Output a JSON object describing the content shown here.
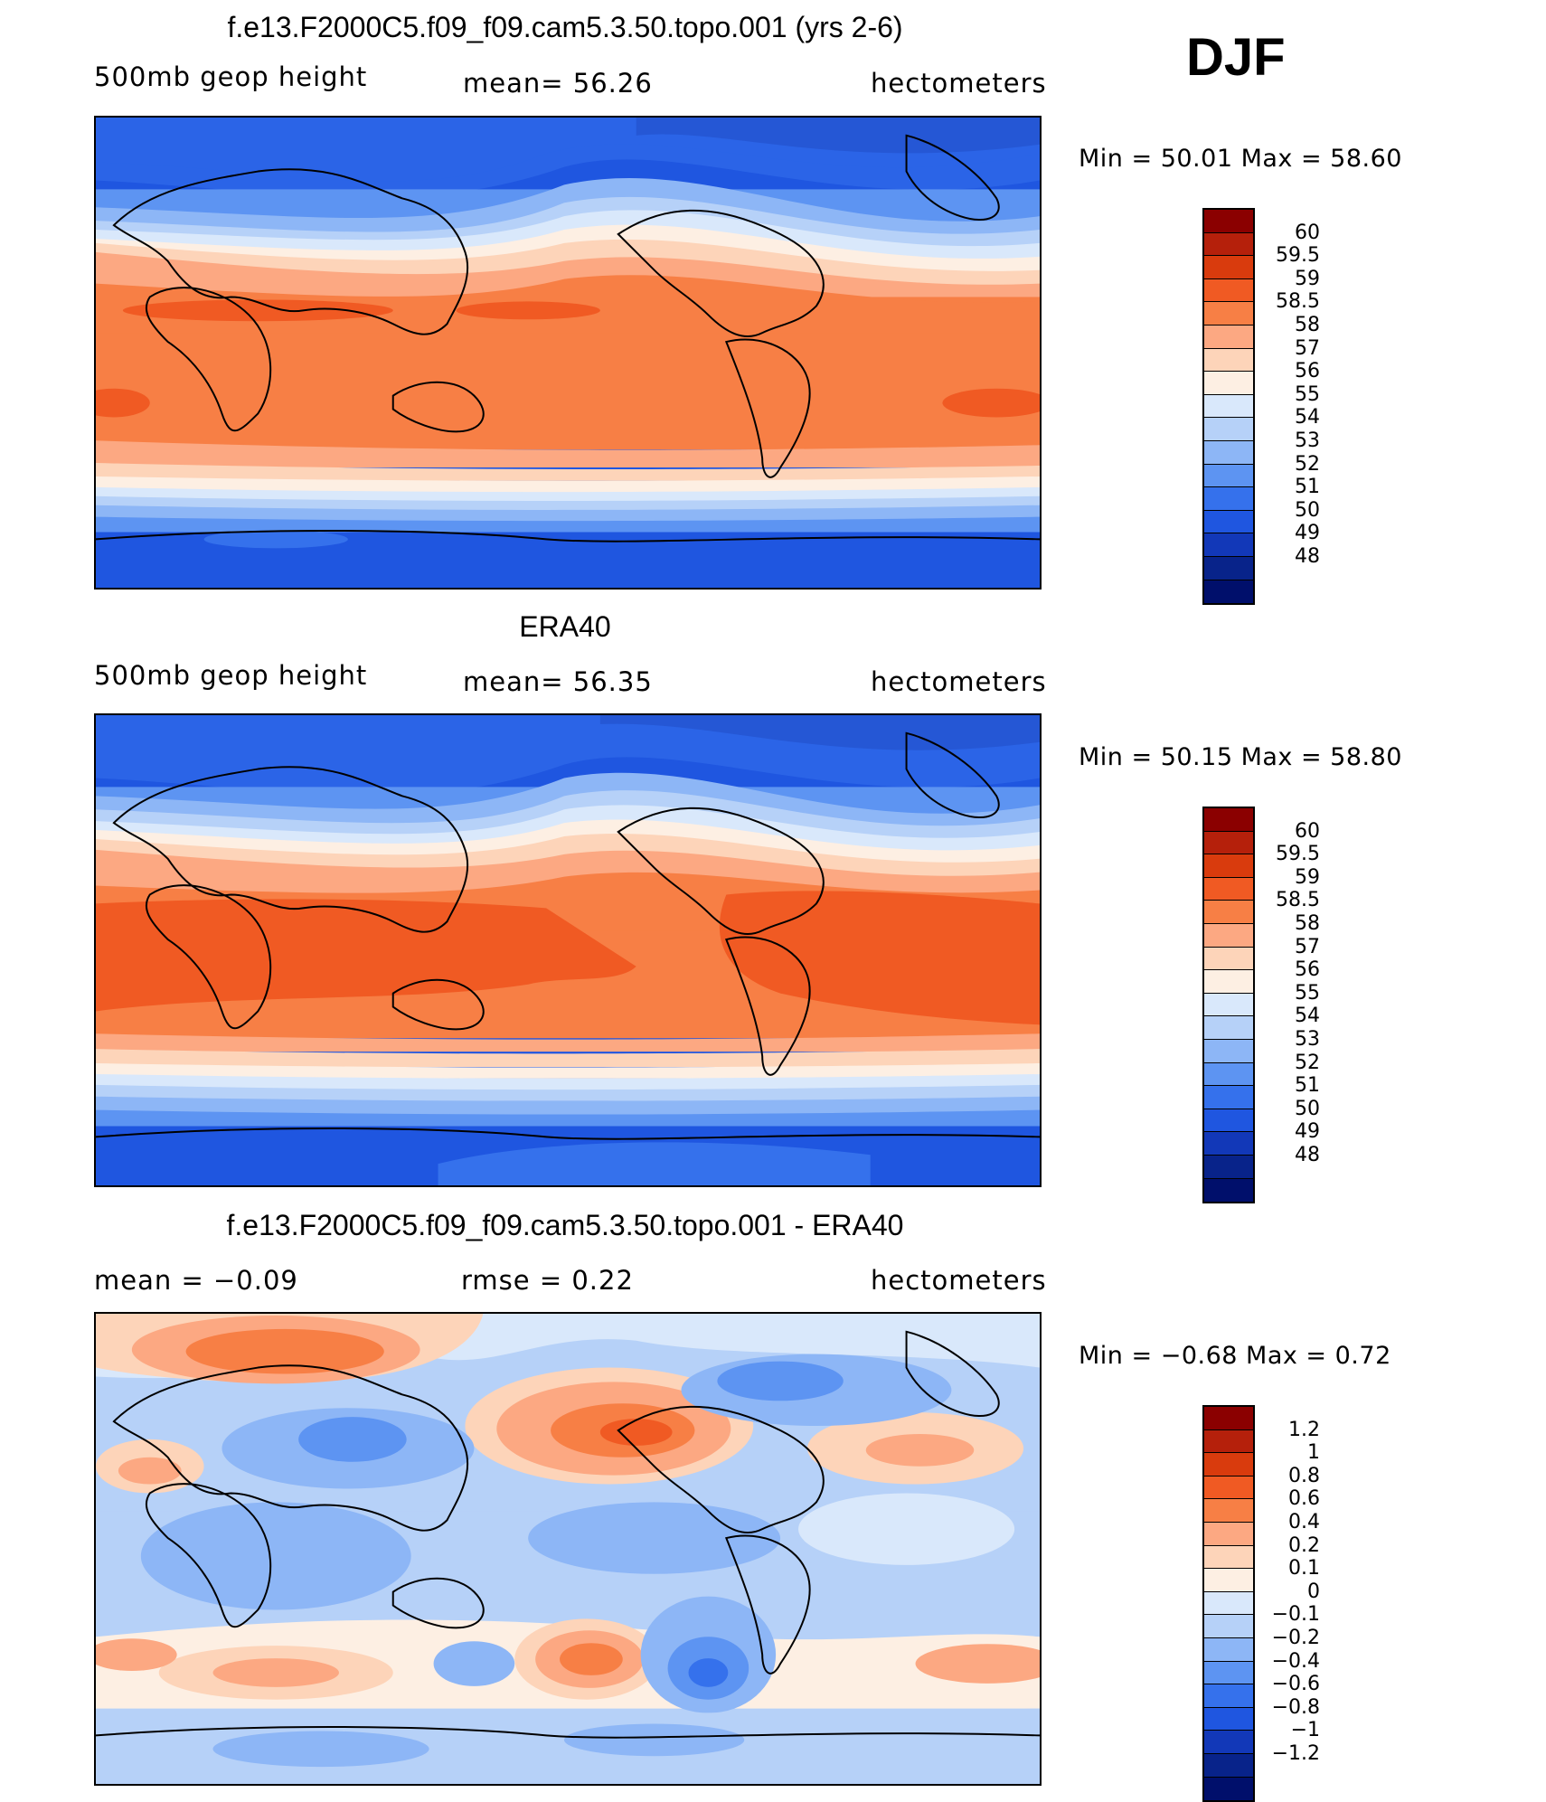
{
  "season": "DJF",
  "panels": [
    {
      "title": "f.e13.F2000C5.f09_f09.cam5.3.50.topo.001 (yrs 2-6)",
      "left": "500mb geop height",
      "center": "mean=  56.26",
      "right": "hectometers",
      "minmax": "Min =   50.01  Max =   58.60",
      "colorbar": {
        "colors": [
          "#8b0000",
          "#b5200b",
          "#d93b0d",
          "#f05a23",
          "#f77f45",
          "#fca882",
          "#fdd4b9",
          "#fdefe3",
          "#d9e8fb",
          "#b6d1f8",
          "#8db6f6",
          "#5d94f2",
          "#3571ec",
          "#1f56e0",
          "#1238b8",
          "#08238a",
          "#000f6b"
        ],
        "labels": [
          "60",
          "59.5",
          "59",
          "58.5",
          "58",
          "57",
          "56",
          "55",
          "54",
          "53",
          "52",
          "51",
          "50",
          "49",
          "48"
        ]
      }
    },
    {
      "title": "ERA40",
      "left": "500mb geop height",
      "center": "mean=  56.35",
      "right": "hectometers",
      "minmax": "Min =   50.15  Max =   58.80",
      "colorbar": {
        "colors": [
          "#8b0000",
          "#b5200b",
          "#d93b0d",
          "#f05a23",
          "#f77f45",
          "#fca882",
          "#fdd4b9",
          "#fdefe3",
          "#d9e8fb",
          "#b6d1f8",
          "#8db6f6",
          "#5d94f2",
          "#3571ec",
          "#1f56e0",
          "#1238b8",
          "#08238a",
          "#000f6b"
        ],
        "labels": [
          "60",
          "59.5",
          "59",
          "58.5",
          "58",
          "57",
          "56",
          "55",
          "54",
          "53",
          "52",
          "51",
          "50",
          "49",
          "48"
        ]
      }
    },
    {
      "title": "f.e13.F2000C5.f09_f09.cam5.3.50.topo.001 - ERA40",
      "left": "mean =   −0.09",
      "center": "rmse =    0.22",
      "right": "hectometers",
      "minmax": "Min =   −0.68  Max =     0.72",
      "colorbar": {
        "colors": [
          "#8b0000",
          "#b5200b",
          "#d93b0d",
          "#f05a23",
          "#f77f45",
          "#fca882",
          "#fdd4b9",
          "#fdefe3",
          "#d9e8fb",
          "#b6d1f8",
          "#8db6f6",
          "#5d94f2",
          "#3571ec",
          "#1f56e0",
          "#1238b8",
          "#08238a",
          "#000f6b"
        ],
        "labels": [
          "1.2",
          "1",
          "0.8",
          "0.6",
          "0.4",
          "0.2",
          "0.1",
          "0",
          "−0.1",
          "−0.2",
          "−0.4",
          "−0.6",
          "−0.8",
          "−1",
          "−1.2"
        ]
      }
    }
  ]
}
